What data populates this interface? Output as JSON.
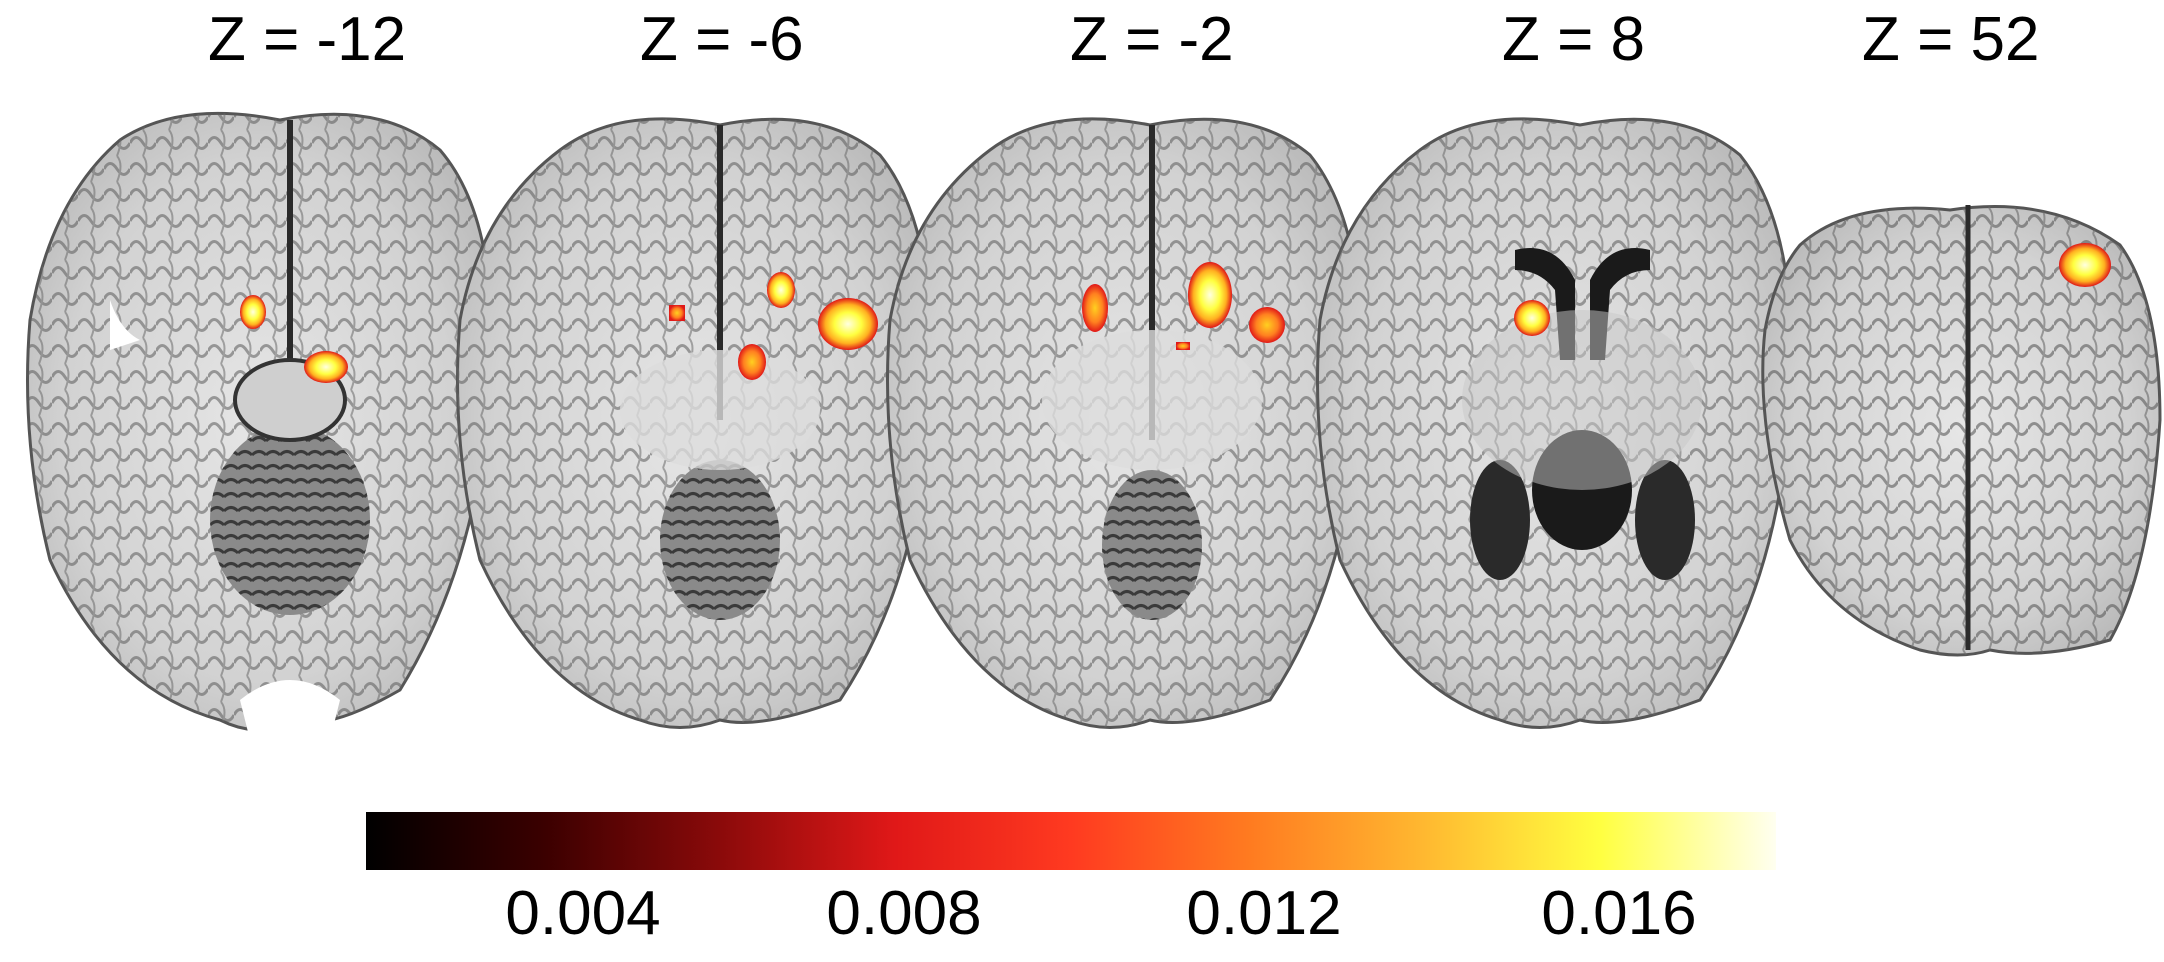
{
  "slices": [
    {
      "label": "Z = -12",
      "z": -12
    },
    {
      "label": "Z = -6",
      "z": -6
    },
    {
      "label": "Z = -2",
      "z": -2
    },
    {
      "label": "Z = 8",
      "z": 8
    },
    {
      "label": "Z = 52",
      "z": 52
    }
  ],
  "colorbar": {
    "colormap": "hot",
    "stops": [
      "#000000",
      "#3a0000",
      "#8a0a0a",
      "#e01818",
      "#ff3a20",
      "#ff7a20",
      "#ffb830",
      "#ffff40",
      "#fffff0"
    ],
    "ticks": [
      "0.004",
      "0.008",
      "0.012",
      "0.016"
    ]
  },
  "colors": {
    "background": "#ffffff",
    "brain_tissue": "#d9d9d9",
    "sulci": "#4a4a4a",
    "activation_core": "#ffff80",
    "activation_edge": "#e01818"
  }
}
